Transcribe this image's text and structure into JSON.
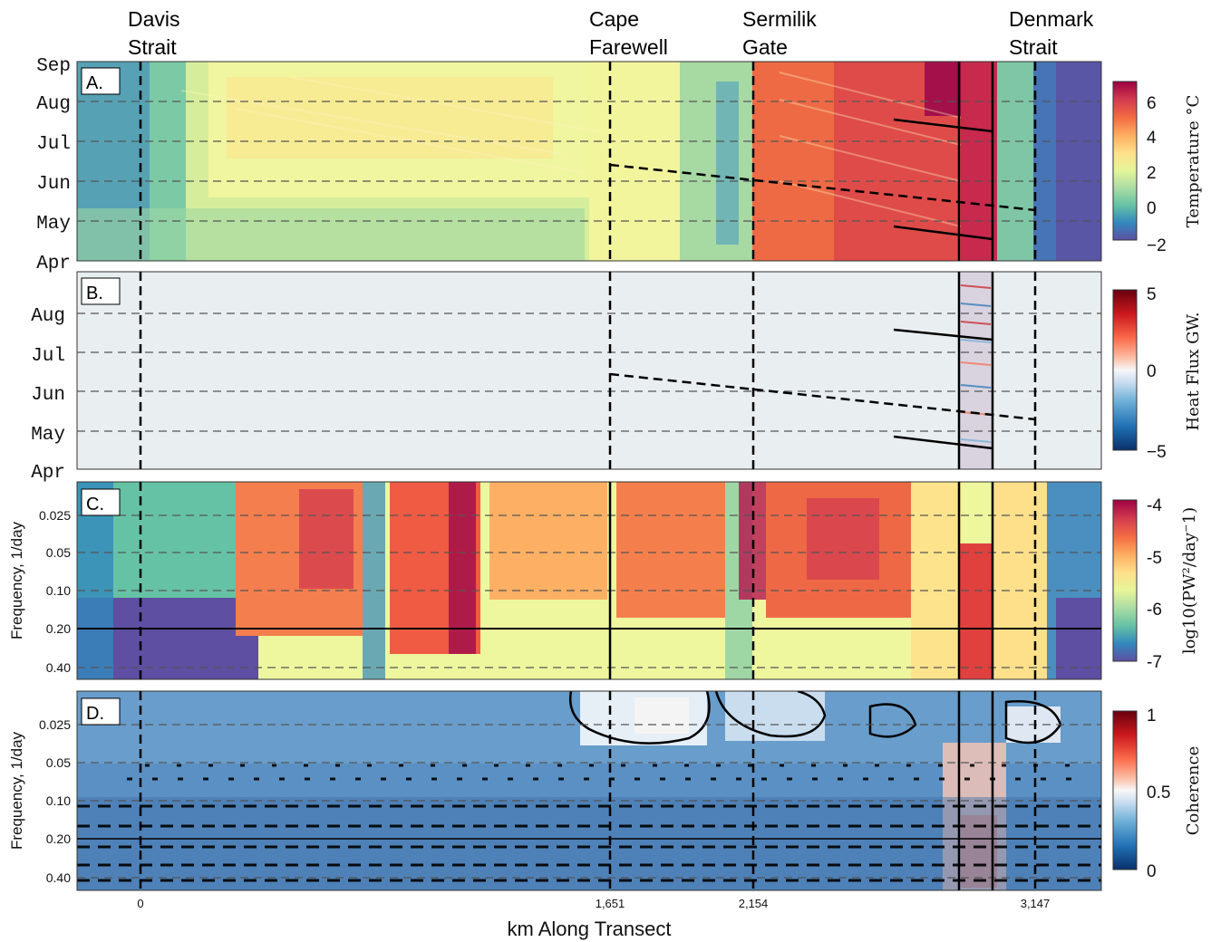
{
  "chart_data": [
    {
      "panel": "A.",
      "type": "heatmap",
      "ylabel": "",
      "y_ticks": [
        "Apr",
        "May",
        "Jun",
        "Jul",
        "Aug",
        "Sep"
      ],
      "colorbar_label": "Temperature °C",
      "colorbar_ticks": [
        "−2",
        "0",
        "2",
        "4",
        "6"
      ],
      "clim": [
        -2,
        7
      ],
      "colormap": "spectral (blue–green–yellow–red)"
    },
    {
      "panel": "B.",
      "type": "heatmap",
      "ylabel": "",
      "y_ticks": [
        "Apr",
        "May",
        "Jun",
        "Jul",
        "Aug"
      ],
      "colorbar_label": "Heat Flux GW.",
      "colorbar_ticks": [
        "−5",
        "0",
        "5"
      ],
      "clim": [
        -5,
        5
      ],
      "colormap": "diverging blue–white–red"
    },
    {
      "panel": "C.",
      "type": "heatmap",
      "ylabel": "Frequency, 1/day",
      "y_ticks": [
        "0.025",
        "0.05",
        "0.10",
        "0.20",
        "0.40"
      ],
      "colorbar_label": "log10(PW²/day⁻1)",
      "colorbar_ticks": [
        "-4",
        "-5",
        "-6",
        "-7"
      ],
      "clim": [
        -7,
        -4
      ],
      "colormap": "spectral (blue–green–yellow–red)"
    },
    {
      "panel": "D.",
      "type": "heatmap",
      "ylabel": "Frequency, 1/day",
      "y_ticks": [
        "0.025",
        "0.05",
        "0.10",
        "0.20",
        "0.40"
      ],
      "colorbar_label": "Coherence",
      "colorbar_ticks": [
        "1",
        "0.5",
        "0"
      ],
      "clim": [
        0,
        1
      ],
      "colormap": "diverging blue–white–red"
    }
  ],
  "x_axis": {
    "label": "km Along Transect",
    "ticks": [
      0,
      1651,
      2154,
      3147
    ],
    "tick_labels": [
      "0",
      "1,651",
      "2,154",
      "3,147"
    ],
    "xlim": [
      -230,
      3400
    ]
  },
  "locations": [
    {
      "line1": "Davis",
      "line2": "Strait",
      "km": 0
    },
    {
      "line1": "Cape",
      "line2": "Farewell",
      "km": 1651
    },
    {
      "line1": "Sermilik",
      "line2": "Gate",
      "km": 2154
    },
    {
      "line1": "Denmark",
      "line2": "Strait",
      "km": 3147
    }
  ],
  "colors": {
    "spectral": [
      "#5e4fa2",
      "#3288bd",
      "#66c2a5",
      "#abdda4",
      "#e6f598",
      "#fee08b",
      "#fdae61",
      "#f46d43",
      "#d53e4f",
      "#9e0142"
    ],
    "diverging": [
      "#08306b",
      "#2171b5",
      "#6baed6",
      "#c6dbef",
      "#f7f7f7",
      "#fcbba1",
      "#fb6a4a",
      "#cb181d",
      "#67000d"
    ],
    "gridline": "#555555"
  }
}
